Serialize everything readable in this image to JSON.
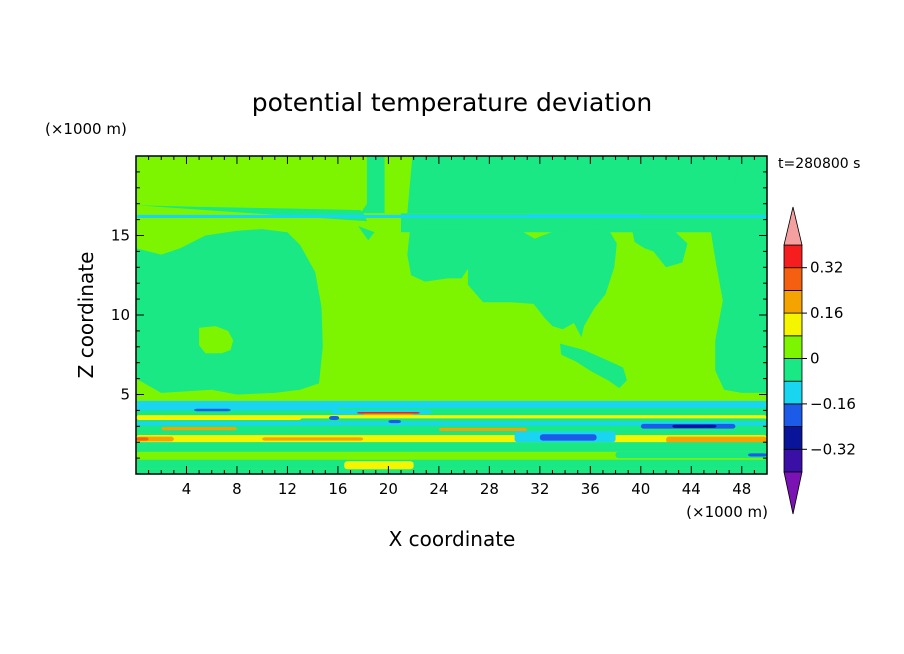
{
  "chart_data": {
    "type": "heatmap",
    "title": "potential temperature deviation",
    "xlabel": "X coordinate",
    "ylabel": "Z coordinate",
    "x_unit": "(×1000 m)",
    "z_unit": "(×1000 m)",
    "time_label": "t=280800 s",
    "xlim": [
      0,
      50
    ],
    "zlim": [
      0,
      20
    ],
    "x_ticks": [
      4,
      8,
      12,
      16,
      20,
      24,
      28,
      32,
      36,
      40,
      44,
      48
    ],
    "z_ticks": [
      5,
      10,
      15
    ],
    "colorbar": {
      "levels": [
        -0.4,
        -0.32,
        -0.24,
        -0.16,
        -0.08,
        0,
        0.08,
        0.16,
        0.24,
        0.32,
        0.4
      ],
      "colors": [
        "#7a12b4",
        "#3a0fa6",
        "#0a149a",
        "#1c5be8",
        "#19d5f0",
        "#19e884",
        "#7df500",
        "#f5f500",
        "#f5a300",
        "#f56010",
        "#f51d1d",
        "#f5a0a0"
      ],
      "tick_values": [
        0.32,
        0.16,
        0,
        -0.16,
        -0.32
      ],
      "tick_labels": [
        "0.32",
        "0.16",
        "0",
        "−0.16",
        "−0.32"
      ]
    },
    "field": {
      "background": "#7df500",
      "regions": [
        {
          "color": "#19e884",
          "x": [
            0,
            2,
            6,
            8,
            11,
            13,
            14.5,
            14.8,
            14.7,
            14.2,
            13,
            12,
            10,
            8,
            5.5,
            3.5,
            2,
            0
          ],
          "z": [
            6,
            5.1,
            5.3,
            5,
            5.1,
            5.3,
            5.7,
            8,
            10.5,
            12.7,
            14.4,
            15.2,
            15.4,
            15.3,
            15,
            14.2,
            13.8,
            14.2
          ]
        },
        {
          "color": "#19e884",
          "x": [
            18.3,
            50,
            50,
            18.3,
            18.3
          ],
          "z": [
            20,
            20,
            16.4,
            16.4,
            20
          ]
        },
        {
          "color": "#19e884",
          "x": [
            21,
            50,
            50,
            21,
            21
          ],
          "z": [
            15.2,
            15.2,
            16.4,
            16.4,
            15.2
          ]
        },
        {
          "color": "#19e884",
          "x": [
            0,
            17.8,
            18.3,
            18.3,
            0,
            0
          ],
          "z": [
            16.4,
            16.4,
            17,
            16.4,
            16.4,
            16.4
          ]
        },
        {
          "color": "#19e884",
          "x": [
            0,
            5,
            12,
            17.8,
            18.1,
            18.3,
            0
          ],
          "z": [
            16.9,
            16.8,
            16.7,
            16.6,
            16.3,
            15.9,
            16.9
          ]
        },
        {
          "color": "#19e884",
          "x": [
            17.6,
            18.9,
            18.4,
            17.6
          ],
          "z": [
            15.6,
            15.2,
            14.7,
            15.6
          ]
        },
        {
          "color": "#19e884",
          "x": [
            21.7,
            23,
            25.5,
            27.3,
            29,
            30.5,
            31.6,
            32.2,
            33.3,
            34,
            36.4,
            37.5,
            38.1,
            37.9,
            37.2,
            36.3,
            35.5,
            35.3,
            34.7,
            33.8,
            33,
            32.4,
            31.5,
            29.7,
            27.5,
            26.3,
            26.3,
            25.8,
            24.7,
            22.9,
            21.8,
            21.5,
            21.7
          ],
          "z": [
            15.3,
            15.4,
            15.4,
            15.3,
            15.4,
            15.3,
            14.8,
            15,
            15.3,
            15.3,
            15.4,
            15.3,
            14.5,
            13,
            11.3,
            10.4,
            9.3,
            8.6,
            9.5,
            9.1,
            9.3,
            9.8,
            10.7,
            10.8,
            10.8,
            11.9,
            12.9,
            12.3,
            12.3,
            12.1,
            12.5,
            13.8,
            15.3
          ]
        },
        {
          "color": "#19e884",
          "x": [
            39.3,
            42.5,
            43.7,
            43.3,
            42,
            41,
            40.3,
            39.5,
            39.3
          ],
          "z": [
            15.4,
            15.4,
            14.5,
            13.3,
            13,
            14,
            14.2,
            14.6,
            15.4
          ]
        },
        {
          "color": "#19e884",
          "x": [
            45.5,
            48,
            50,
            50,
            49.3,
            48,
            46.6,
            45.9,
            45.9,
            46.5,
            45.9,
            45.5
          ],
          "z": [
            15.5,
            15.5,
            16.6,
            5.1,
            5.1,
            5.1,
            5.3,
            6.5,
            8.4,
            10.9,
            13.5,
            15.5
          ]
        },
        {
          "color": "#19e884",
          "x": [
            33.6,
            35.5,
            37.2,
            38.6,
            38.9,
            38.3,
            37.4,
            36.2,
            34.8,
            33.7,
            33.6
          ],
          "z": [
            8.2,
            7.8,
            7.2,
            6.7,
            5.9,
            5.4,
            5.9,
            6.4,
            7.1,
            7.5,
            8.2
          ]
        },
        {
          "color": "#19e884",
          "x": [
            47.3,
            48,
            49,
            50,
            50,
            48.8,
            47.3
          ],
          "z": [
            18.2,
            20,
            20,
            19.7,
            16.5,
            16.8,
            18.2
          ]
        },
        {
          "color": "#7df500",
          "x": [
            5,
            6.3,
            7.3,
            7.7,
            7.5,
            6.8,
            5.5,
            5,
            5
          ],
          "z": [
            9.2,
            9.3,
            9,
            8.4,
            7.8,
            7.6,
            7.6,
            8.1,
            9.2
          ]
        },
        {
          "color": "#7df500",
          "x": [
            19.7,
            21.9,
            21.5,
            19.7,
            19.7
          ],
          "z": [
            20,
            20,
            16.4,
            16.4,
            20
          ]
        },
        {
          "color": "#19e884",
          "x": [
            0,
            50,
            50,
            0,
            0
          ],
          "z": [
            4.3,
            4.3,
            0.35,
            0.35,
            4.3
          ]
        },
        {
          "color": "#19e884",
          "x": [
            0,
            50,
            50,
            0,
            0
          ],
          "z": [
            0.35,
            0.35,
            0,
            0,
            0.35
          ]
        }
      ],
      "bands": [
        {
          "color": "#19d5f0",
          "x": [
            0,
            50
          ],
          "z": [
            4.15,
            4.4
          ]
        },
        {
          "color": "#19d5f0",
          "x": [
            0,
            16
          ],
          "z": [
            4.0,
            4.2
          ]
        },
        {
          "color": "#1c5be8",
          "x": [
            4.6,
            7.5
          ],
          "z": [
            3.95,
            4.1
          ]
        },
        {
          "color": "#19d5f0",
          "x": [
            15.5,
            23.4
          ],
          "z": [
            3.75,
            4.05
          ]
        },
        {
          "color": "#f51d1d",
          "x": [
            17.5,
            22.5
          ],
          "z": [
            3.8,
            3.9
          ]
        },
        {
          "color": "#f5a300",
          "x": [
            18,
            22
          ],
          "z": [
            3.72,
            3.8
          ]
        },
        {
          "color": "#f5f500",
          "x": [
            0,
            50
          ],
          "z": [
            3.4,
            3.7
          ]
        },
        {
          "color": "#19e884",
          "x": [
            13,
            50
          ],
          "z": [
            3.3,
            3.5
          ]
        },
        {
          "color": "#19d5f0",
          "x": [
            0,
            50
          ],
          "z": [
            3.05,
            3.3
          ]
        },
        {
          "color": "#1c5be8",
          "x": [
            40,
            47.5
          ],
          "z": [
            2.85,
            3.15
          ]
        },
        {
          "color": "#0a149a",
          "x": [
            42.5,
            46
          ],
          "z": [
            2.9,
            3.1
          ]
        },
        {
          "color": "#f5a300",
          "x": [
            2,
            8
          ],
          "z": [
            2.75,
            2.95
          ]
        },
        {
          "color": "#f5a300",
          "x": [
            24,
            31
          ],
          "z": [
            2.7,
            2.9
          ]
        },
        {
          "color": "#19e884",
          "x": [
            0,
            50
          ],
          "z": [
            2.45,
            2.7
          ]
        },
        {
          "color": "#f5f500",
          "x": [
            0,
            50
          ],
          "z": [
            2.0,
            2.45
          ]
        },
        {
          "color": "#f5a300",
          "x": [
            0,
            3
          ],
          "z": [
            2.05,
            2.35
          ]
        },
        {
          "color": "#f56010",
          "x": [
            0,
            1
          ],
          "z": [
            2.1,
            2.3
          ]
        },
        {
          "color": "#f5a300",
          "x": [
            10,
            18
          ],
          "z": [
            2.1,
            2.3
          ]
        },
        {
          "color": "#f5a300",
          "x": [
            42,
            50
          ],
          "z": [
            1.95,
            2.35
          ]
        },
        {
          "color": "#19d5f0",
          "x": [
            30,
            38
          ],
          "z": [
            2.0,
            2.7
          ]
        },
        {
          "color": "#1c5be8",
          "x": [
            32,
            36.5
          ],
          "z": [
            2.1,
            2.5
          ]
        },
        {
          "color": "#19e884",
          "x": [
            0,
            50
          ],
          "z": [
            1.4,
            2.0
          ]
        },
        {
          "color": "#7df500",
          "x": [
            0,
            50
          ],
          "z": [
            0.9,
            1.4
          ]
        },
        {
          "color": "#f5f500",
          "x": [
            16.5,
            22
          ],
          "z": [
            0.3,
            0.8
          ]
        },
        {
          "color": "#19e884",
          "x": [
            38,
            50
          ],
          "z": [
            1.0,
            1.4
          ]
        },
        {
          "color": "#1c5be8",
          "x": [
            48.5,
            50
          ],
          "z": [
            1.1,
            1.3
          ]
        },
        {
          "color": "#19d5f0",
          "x": [
            0,
            50
          ],
          "z": [
            4.4,
            4.6
          ]
        },
        {
          "color": "#1c5be8",
          "x": [
            15.3,
            16.1
          ],
          "z": [
            3.4,
            3.65
          ]
        },
        {
          "color": "#1c5be8",
          "x": [
            20,
            21
          ],
          "z": [
            3.2,
            3.4
          ]
        },
        {
          "color": "#19d5f0",
          "x": [
            0,
            50
          ],
          "z": [
            16.1,
            16.3
          ]
        },
        {
          "color": "#19d5f0",
          "x": [
            31,
            40
          ],
          "z": [
            16.2,
            16.35
          ]
        }
      ]
    }
  }
}
